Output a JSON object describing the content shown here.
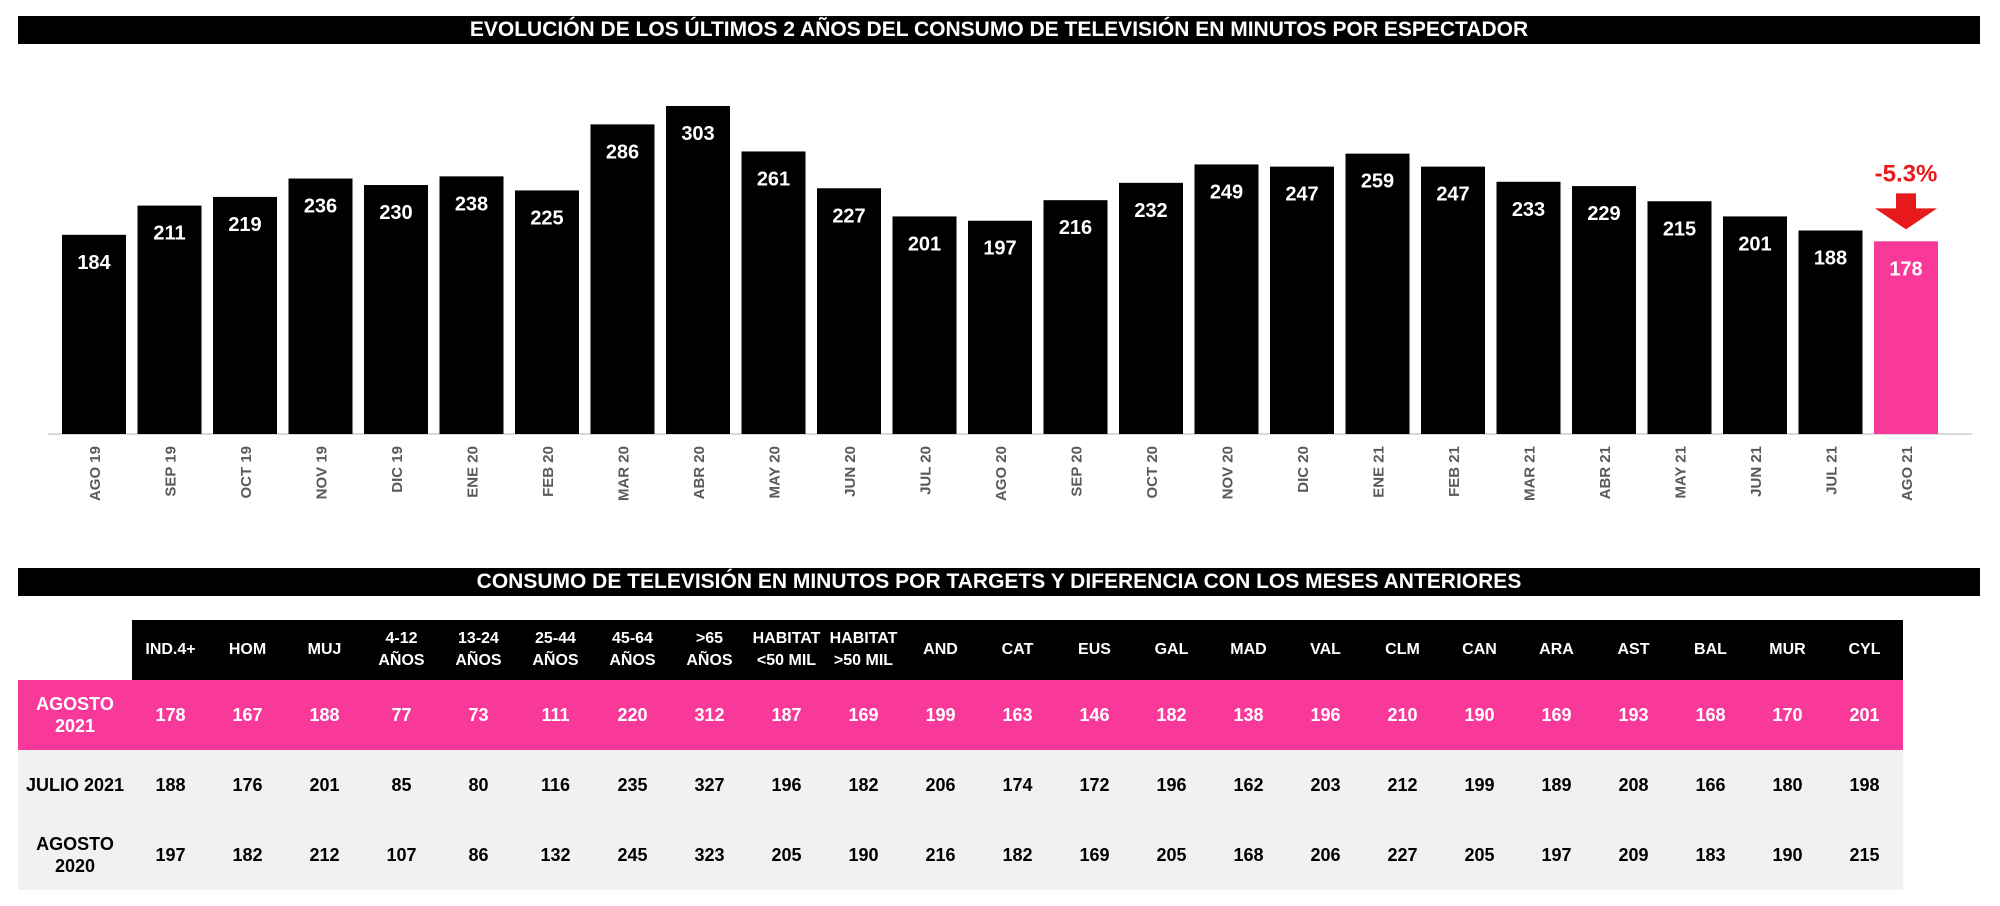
{
  "chart_data": {
    "type": "bar",
    "title": "EVOLUCIÓN DE LOS ÚLTIMOS 2 AÑOS DEL CONSUMO DE TELEVISIÓN EN MINUTOS POR ESPECTADOR",
    "categories": [
      "AGO 19",
      "SEP 19",
      "OCT 19",
      "NOV 19",
      "DIC 19",
      "ENE 20",
      "FEB 20",
      "MAR 20",
      "ABR 20",
      "MAY 20",
      "JUN 20",
      "JUL 20",
      "AGO 20",
      "SEP 20",
      "OCT 20",
      "NOV 20",
      "DIC 20",
      "ENE 21",
      "FEB 21",
      "MAR 21",
      "ABR 21",
      "MAY 21",
      "JUN 21",
      "JUL 21",
      "AGO 21"
    ],
    "values": [
      184,
      211,
      219,
      236,
      230,
      238,
      225,
      286,
      303,
      261,
      227,
      201,
      197,
      216,
      232,
      249,
      247,
      259,
      247,
      233,
      229,
      215,
      201,
      188,
      178
    ],
    "ylim": [
      0,
      320
    ],
    "xlabel": "",
    "ylabel": "",
    "bar_color": "#000000",
    "highlight_color": "#f8399a",
    "highlight_index": 24,
    "annotation": {
      "text": "-5.3%",
      "color": "#e8191b",
      "icon": "arrow-down-icon"
    }
  },
  "table": {
    "title": "CONSUMO DE TELEVISIÓN EN MINUTOS POR TARGETS Y DIFERENCIA CON LOS MESES ANTERIORES",
    "headers": [
      [
        "IND.4+"
      ],
      [
        "HOM"
      ],
      [
        "MUJ"
      ],
      [
        "4-12",
        "AÑOS"
      ],
      [
        "13-24",
        "AÑOS"
      ],
      [
        "25-44",
        "AÑOS"
      ],
      [
        "45-64",
        "AÑOS"
      ],
      [
        ">65",
        "AÑOS"
      ],
      [
        "HABITAT",
        "<50 MIL"
      ],
      [
        "HABITAT",
        ">50 MIL"
      ],
      [
        "AND"
      ],
      [
        "CAT"
      ],
      [
        "EUS"
      ],
      [
        "GAL"
      ],
      [
        "MAD"
      ],
      [
        "VAL"
      ],
      [
        "CLM"
      ],
      [
        "CAN"
      ],
      [
        "ARA"
      ],
      [
        "AST"
      ],
      [
        "BAL"
      ],
      [
        "MUR"
      ],
      [
        "CYL"
      ]
    ],
    "rows": [
      {
        "label": [
          "AGOSTO",
          "2021"
        ],
        "values": [
          178,
          167,
          188,
          77,
          73,
          111,
          220,
          312,
          187,
          169,
          199,
          163,
          146,
          182,
          138,
          196,
          210,
          190,
          169,
          193,
          168,
          170,
          201
        ]
      },
      {
        "label": [
          "JULIO 2021"
        ],
        "values": [
          188,
          176,
          201,
          85,
          80,
          116,
          235,
          327,
          196,
          182,
          206,
          174,
          172,
          196,
          162,
          203,
          212,
          199,
          189,
          208,
          166,
          180,
          198
        ]
      },
      {
        "label": [
          "AGOSTO",
          "2020"
        ],
        "values": [
          197,
          182,
          212,
          107,
          86,
          132,
          245,
          323,
          205,
          190,
          216,
          182,
          169,
          205,
          168,
          206,
          227,
          205,
          197,
          209,
          183,
          190,
          215
        ]
      }
    ]
  }
}
